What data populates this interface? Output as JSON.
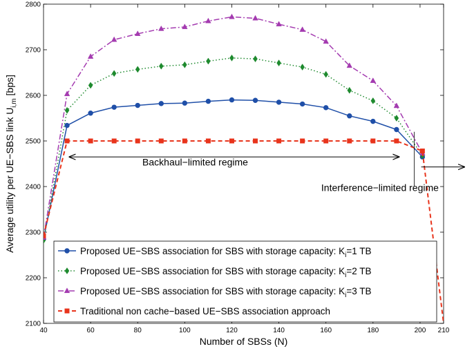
{
  "chart_data": {
    "type": "line",
    "xlabel": "Number of SBSs (N)",
    "ylabel_main": "Average utility per UE−SBS link U",
    "ylabel_sub": "i,m",
    "ylabel_unit": " [bps]",
    "xlim": [
      40,
      210
    ],
    "ylim": [
      2100,
      2800
    ],
    "xticks": [
      40,
      60,
      80,
      100,
      120,
      140,
      160,
      180,
      200,
      210
    ],
    "yticks": [
      2100,
      2200,
      2300,
      2400,
      2500,
      2600,
      2700,
      2800
    ],
    "grid": false,
    "legend_position": "bottom",
    "series": [
      {
        "name_prefix": "Proposed UE−SBS association for SBS with storage capacity: K",
        "name_sub": "i",
        "name_suffix": "=1 TB",
        "color": "#1f4fa8",
        "dash": "",
        "marker": "circle",
        "x": [
          40,
          50,
          60,
          70,
          80,
          90,
          100,
          110,
          120,
          130,
          140,
          150,
          160,
          170,
          180,
          190,
          201
        ],
        "y": [
          2285,
          2534,
          2561,
          2574,
          2578,
          2582,
          2583,
          2587,
          2590,
          2589,
          2585,
          2581,
          2573,
          2555,
          2543,
          2525,
          2465
        ]
      },
      {
        "name_prefix": "Proposed UE−SBS association for SBS with storage capacity: K",
        "name_sub": "i",
        "name_suffix": "=2 TB",
        "color": "#1e8a2e",
        "dash": "1.5,3",
        "marker": "diamond",
        "x": [
          40,
          50,
          60,
          70,
          80,
          90,
          100,
          110,
          120,
          130,
          140,
          150,
          160,
          170,
          180,
          190,
          201
        ],
        "y": [
          2282,
          2567,
          2622,
          2648,
          2657,
          2664,
          2667,
          2675,
          2682,
          2680,
          2671,
          2662,
          2646,
          2611,
          2588,
          2550,
          2468
        ]
      },
      {
        "name_prefix": "Proposed UE−SBS association for SBS with storage capacity: K",
        "name_sub": "i",
        "name_suffix": "=3 TB",
        "color": "#a43bb0",
        "dash": "8,3,2,3",
        "marker": "triangle",
        "x": [
          40,
          50,
          60,
          70,
          80,
          90,
          100,
          110,
          120,
          130,
          140,
          150,
          160,
          170,
          180,
          190,
          201
        ],
        "y": [
          2288,
          2603,
          2685,
          2722,
          2735,
          2746,
          2750,
          2763,
          2772,
          2769,
          2756,
          2744,
          2718,
          2665,
          2632,
          2577,
          2473
        ]
      },
      {
        "name_prefix": "Traditional non cache−based UE−SBS association approach",
        "name_sub": "",
        "name_suffix": "",
        "color": "#e8341c",
        "dash": "6,4",
        "marker": "square",
        "x": [
          40,
          50,
          60,
          70,
          80,
          90,
          100,
          110,
          120,
          130,
          140,
          150,
          160,
          170,
          180,
          190,
          201,
          210
        ],
        "y": [
          2292,
          2500,
          2500,
          2500,
          2500,
          2500,
          2500,
          2500,
          2500,
          2500,
          2500,
          2500,
          2500,
          2500,
          2500,
          2500,
          2478,
          2100
        ]
      }
    ],
    "annotations": [
      {
        "text": "Backhaul−limited regime",
        "arrow": "double",
        "x_from": 51,
        "x_to": 191,
        "y": 2465,
        "label_x": 82,
        "label_y": 2446
      },
      {
        "text": "Interference−limited regime",
        "arrow": "right",
        "x_from": 200.5,
        "x_to": 210,
        "y": 2443,
        "label_x": 158,
        "label_y": 2390
      }
    ]
  }
}
